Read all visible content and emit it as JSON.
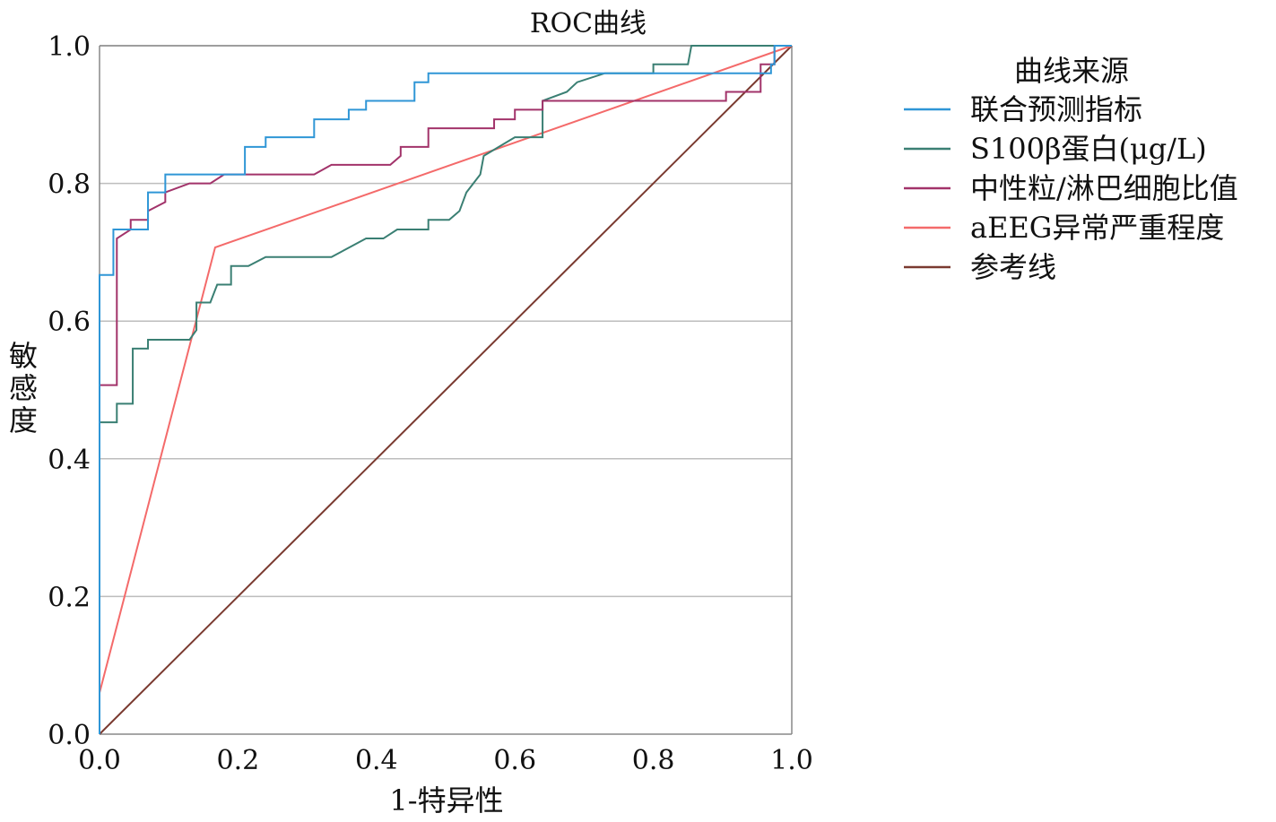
{
  "chart_data": {
    "type": "line",
    "title": "ROC曲线",
    "xlabel": "1-特异性",
    "ylabel": "敏感度",
    "xlim": [
      0,
      1
    ],
    "ylim": [
      0,
      1
    ],
    "x_ticks": [
      "0.0",
      "0.2",
      "0.4",
      "0.6",
      "0.8",
      "1.0"
    ],
    "y_ticks": [
      "0.0",
      "0.2",
      "0.4",
      "0.6",
      "0.8",
      "1.0"
    ],
    "grid": "horizontal",
    "legend_title": "曲线来源",
    "legend_position": "right",
    "series": [
      {
        "name": "联合预测指标",
        "color": "#2f96d6",
        "step": true,
        "points": [
          [
            0,
            0
          ],
          [
            0,
            0.667
          ],
          [
            0.02,
            0.667
          ],
          [
            0.02,
            0.733
          ],
          [
            0.07,
            0.733
          ],
          [
            0.07,
            0.787
          ],
          [
            0.095,
            0.787
          ],
          [
            0.095,
            0.813
          ],
          [
            0.21,
            0.813
          ],
          [
            0.21,
            0.853
          ],
          [
            0.24,
            0.853
          ],
          [
            0.24,
            0.867
          ],
          [
            0.31,
            0.867
          ],
          [
            0.31,
            0.893
          ],
          [
            0.36,
            0.893
          ],
          [
            0.36,
            0.907
          ],
          [
            0.385,
            0.907
          ],
          [
            0.385,
            0.92
          ],
          [
            0.455,
            0.92
          ],
          [
            0.455,
            0.947
          ],
          [
            0.475,
            0.947
          ],
          [
            0.475,
            0.96
          ],
          [
            0.97,
            0.96
          ],
          [
            0.97,
            0.973
          ],
          [
            0.975,
            0.973
          ],
          [
            0.975,
            1.0
          ],
          [
            1.0,
            1.0
          ]
        ]
      },
      {
        "name": "S100β蛋白(μg/L)",
        "color": "#3a7f73",
        "step": true,
        "points": [
          [
            0,
            0
          ],
          [
            0,
            0.453
          ],
          [
            0.025,
            0.453
          ],
          [
            0.025,
            0.48
          ],
          [
            0.048,
            0.48
          ],
          [
            0.048,
            0.56
          ],
          [
            0.07,
            0.56
          ],
          [
            0.07,
            0.573
          ],
          [
            0.13,
            0.573
          ],
          [
            0.14,
            0.587
          ],
          [
            0.14,
            0.627
          ],
          [
            0.16,
            0.627
          ],
          [
            0.17,
            0.653
          ],
          [
            0.19,
            0.653
          ],
          [
            0.19,
            0.68
          ],
          [
            0.215,
            0.68
          ],
          [
            0.24,
            0.693
          ],
          [
            0.335,
            0.693
          ],
          [
            0.385,
            0.72
          ],
          [
            0.41,
            0.72
          ],
          [
            0.43,
            0.733
          ],
          [
            0.475,
            0.733
          ],
          [
            0.475,
            0.747
          ],
          [
            0.505,
            0.747
          ],
          [
            0.52,
            0.76
          ],
          [
            0.53,
            0.787
          ],
          [
            0.54,
            0.8
          ],
          [
            0.55,
            0.813
          ],
          [
            0.555,
            0.84
          ],
          [
            0.6,
            0.867
          ],
          [
            0.64,
            0.867
          ],
          [
            0.64,
            0.92
          ],
          [
            0.675,
            0.933
          ],
          [
            0.69,
            0.947
          ],
          [
            0.73,
            0.96
          ],
          [
            0.8,
            0.96
          ],
          [
            0.8,
            0.973
          ],
          [
            0.85,
            0.973
          ],
          [
            0.855,
            1.0
          ],
          [
            1.0,
            1.0
          ]
        ]
      },
      {
        "name": "中性粒/淋巴细胞比值",
        "color": "#a2336a",
        "step": true,
        "points": [
          [
            0,
            0
          ],
          [
            0,
            0.507
          ],
          [
            0.025,
            0.507
          ],
          [
            0.025,
            0.72
          ],
          [
            0.045,
            0.733
          ],
          [
            0.045,
            0.747
          ],
          [
            0.07,
            0.747
          ],
          [
            0.07,
            0.76
          ],
          [
            0.095,
            0.773
          ],
          [
            0.095,
            0.787
          ],
          [
            0.13,
            0.8
          ],
          [
            0.16,
            0.8
          ],
          [
            0.18,
            0.813
          ],
          [
            0.31,
            0.813
          ],
          [
            0.335,
            0.827
          ],
          [
            0.42,
            0.827
          ],
          [
            0.435,
            0.84
          ],
          [
            0.435,
            0.853
          ],
          [
            0.475,
            0.853
          ],
          [
            0.475,
            0.88
          ],
          [
            0.57,
            0.88
          ],
          [
            0.57,
            0.893
          ],
          [
            0.6,
            0.893
          ],
          [
            0.6,
            0.907
          ],
          [
            0.64,
            0.907
          ],
          [
            0.64,
            0.92
          ],
          [
            0.905,
            0.92
          ],
          [
            0.905,
            0.933
          ],
          [
            0.955,
            0.933
          ],
          [
            0.955,
            0.973
          ],
          [
            0.975,
            0.973
          ],
          [
            0.975,
            1.0
          ],
          [
            1.0,
            1.0
          ]
        ]
      },
      {
        "name": "aEEG异常严重程度",
        "color": "#f46a6a",
        "step": false,
        "points": [
          [
            0,
            0.06
          ],
          [
            0.167,
            0.707
          ],
          [
            1.0,
            1.0
          ]
        ]
      },
      {
        "name": "参考线",
        "color": "#7a3a30",
        "step": false,
        "points": [
          [
            0,
            0
          ],
          [
            1,
            1
          ]
        ]
      }
    ]
  }
}
